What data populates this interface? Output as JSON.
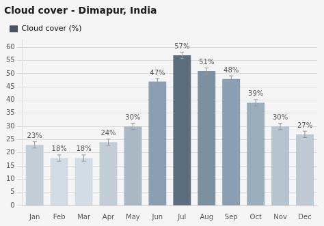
{
  "chart_data": {
    "type": "bar",
    "title": "Cloud cover - Dimapur, India",
    "categories": [
      "Jan",
      "Feb",
      "Mar",
      "Apr",
      "May",
      "Jun",
      "Jul",
      "Aug",
      "Sep",
      "Oct",
      "Nov",
      "Dec"
    ],
    "series": [
      {
        "name": "Cloud cover (%)",
        "color": "#4a5560",
        "colors": [
          "#c2cdd6",
          "#d2dce5",
          "#d2dce5",
          "#c2cdd6",
          "#aab8c5",
          "#8aa0b2",
          "#5a6e7e",
          "#7d909f",
          "#8aa0b2",
          "#9aaebb",
          "#b5c4cf",
          "#bec9d3"
        ],
        "values": [
          23,
          18,
          18,
          24,
          30,
          47,
          57,
          51,
          48,
          39,
          30,
          27
        ],
        "value_labels": [
          "23%",
          "18%",
          "18%",
          "24%",
          "30%",
          "47%",
          "57%",
          "51%",
          "48%",
          "39%",
          "30%",
          "27%"
        ],
        "error": 1.2
      }
    ],
    "ylim": [
      0,
      63
    ],
    "yticks": [
      0,
      5,
      10,
      15,
      20,
      25,
      30,
      35,
      40,
      45,
      50,
      55,
      60
    ],
    "grid": true,
    "legend": "upper left",
    "data_labels": true
  }
}
